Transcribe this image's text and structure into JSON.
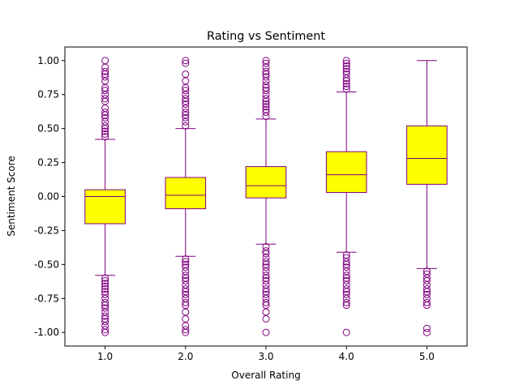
{
  "chart_data": {
    "type": "box",
    "title": "Rating vs Sentiment",
    "xlabel": "Overall Rating",
    "ylabel": "Sentiment Score",
    "categories": [
      "1.0",
      "2.0",
      "3.0",
      "4.0",
      "5.0"
    ],
    "ylim": [
      -1.1,
      1.1
    ],
    "yticks": [
      "-1.00",
      "-0.75",
      "-0.50",
      "-0.25",
      "0.00",
      "0.25",
      "0.50",
      "0.75",
      "1.00"
    ],
    "ytick_values": [
      -1.0,
      -0.75,
      -0.5,
      -0.25,
      0.0,
      0.25,
      0.5,
      0.75,
      1.0
    ],
    "grid": false,
    "colors": {
      "box_fill": "#ffff00",
      "box_edge": "#800080",
      "median": "#800080",
      "whisker": "#800080",
      "flier": "#800080"
    },
    "boxes": [
      {
        "category": "1.0",
        "whislo": -0.58,
        "q1": -0.2,
        "med": 0.0,
        "q3": 0.05,
        "whishi": 0.42,
        "fliers_high": [
          0.44,
          0.46,
          0.48,
          0.5,
          0.52,
          0.55,
          0.58,
          0.6,
          0.62,
          0.65,
          0.7,
          0.72,
          0.75,
          0.78,
          0.8,
          0.85,
          0.88,
          0.9,
          0.92,
          0.95,
          1.0
        ],
        "fliers_low": [
          -0.6,
          -0.62,
          -0.64,
          -0.66,
          -0.68,
          -0.7,
          -0.72,
          -0.75,
          -0.78,
          -0.8,
          -0.82,
          -0.85,
          -0.88,
          -0.9,
          -0.92,
          -0.95,
          -0.98,
          -1.0
        ]
      },
      {
        "category": "2.0",
        "whislo": -0.44,
        "q1": -0.09,
        "med": 0.01,
        "q3": 0.14,
        "whishi": 0.5,
        "fliers_high": [
          0.52,
          0.55,
          0.58,
          0.6,
          0.62,
          0.65,
          0.68,
          0.7,
          0.72,
          0.75,
          0.78,
          0.8,
          0.85,
          0.9,
          0.98,
          1.0
        ],
        "fliers_low": [
          -0.46,
          -0.48,
          -0.5,
          -0.52,
          -0.55,
          -0.58,
          -0.6,
          -0.62,
          -0.65,
          -0.68,
          -0.7,
          -0.72,
          -0.75,
          -0.78,
          -0.8,
          -0.85,
          -0.9,
          -0.95,
          -0.98,
          -1.0
        ]
      },
      {
        "category": "3.0",
        "whislo": -0.35,
        "q1": -0.01,
        "med": 0.08,
        "q3": 0.22,
        "whishi": 0.57,
        "fliers_high": [
          0.59,
          0.62,
          0.64,
          0.66,
          0.68,
          0.7,
          0.72,
          0.75,
          0.78,
          0.8,
          0.82,
          0.85,
          0.88,
          0.9,
          0.92,
          0.95,
          0.98,
          1.0
        ],
        "fliers_low": [
          -0.37,
          -0.4,
          -0.42,
          -0.45,
          -0.48,
          -0.5,
          -0.52,
          -0.55,
          -0.58,
          -0.6,
          -0.62,
          -0.65,
          -0.68,
          -0.7,
          -0.72,
          -0.75,
          -0.78,
          -0.8,
          -0.85,
          -0.9,
          -1.0
        ]
      },
      {
        "category": "4.0",
        "whislo": -0.41,
        "q1": 0.03,
        "med": 0.16,
        "q3": 0.33,
        "whishi": 0.77,
        "fliers_high": [
          0.79,
          0.81,
          0.83,
          0.85,
          0.87,
          0.9,
          0.92,
          0.94,
          0.96,
          0.98,
          1.0
        ],
        "fliers_low": [
          -0.43,
          -0.45,
          -0.48,
          -0.5,
          -0.52,
          -0.55,
          -0.58,
          -0.6,
          -0.62,
          -0.65,
          -0.68,
          -0.7,
          -0.72,
          -0.75,
          -0.78,
          -0.8,
          -1.0
        ]
      },
      {
        "category": "5.0",
        "whislo": -0.53,
        "q1": 0.09,
        "med": 0.28,
        "q3": 0.52,
        "whishi": 1.0,
        "fliers_high": [],
        "fliers_low": [
          -0.55,
          -0.57,
          -0.6,
          -0.62,
          -0.65,
          -0.68,
          -0.7,
          -0.72,
          -0.75,
          -0.78,
          -0.8,
          -0.97,
          -1.0
        ]
      }
    ]
  }
}
